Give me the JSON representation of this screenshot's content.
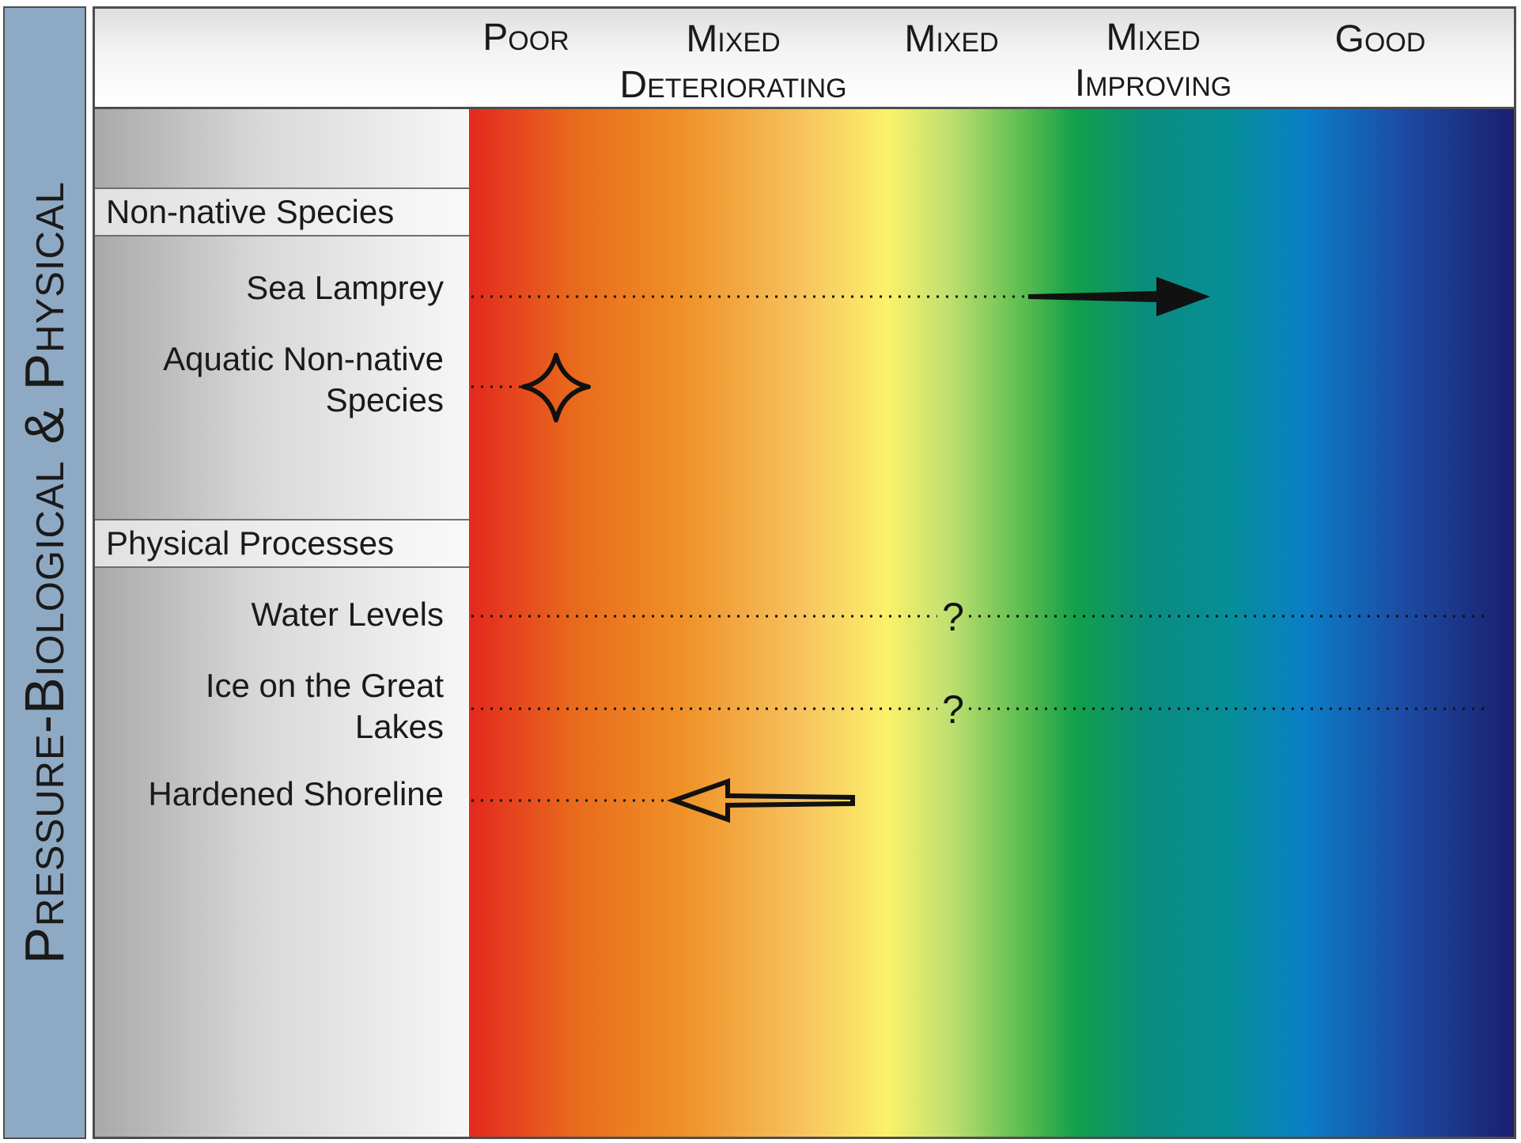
{
  "side_title": "Pressure-Biological & Physical",
  "header": {
    "scale": [
      {
        "line1": "Poor",
        "line2": ""
      },
      {
        "line1": "Mixed",
        "line2": "Deteriorating"
      },
      {
        "line1": "Mixed",
        "line2": ""
      },
      {
        "line1": "Mixed",
        "line2": "Improving"
      },
      {
        "line1": "Good",
        "line2": ""
      }
    ]
  },
  "categories": [
    {
      "title": "Non-native Species",
      "items": [
        {
          "line1": "Sea Lamprey",
          "line2": "",
          "status": "improving",
          "symbol": "arrow-right-solid"
        },
        {
          "line1": "Aquatic Non-native",
          "line2": "Species",
          "status": "poor",
          "symbol": "star-four-point"
        }
      ]
    },
    {
      "title": "Physical Processes",
      "items": [
        {
          "line1": "Water Levels",
          "line2": "",
          "status": "undetermined",
          "symbol": "question-mark",
          "mark": "?"
        },
        {
          "line1": "Ice on the Great",
          "line2": "Lakes",
          "status": "undetermined",
          "symbol": "question-mark",
          "mark": "?"
        },
        {
          "line1": "Hardened Shoreline",
          "line2": "",
          "status": "deteriorating",
          "symbol": "arrow-left-open"
        }
      ]
    }
  ]
}
